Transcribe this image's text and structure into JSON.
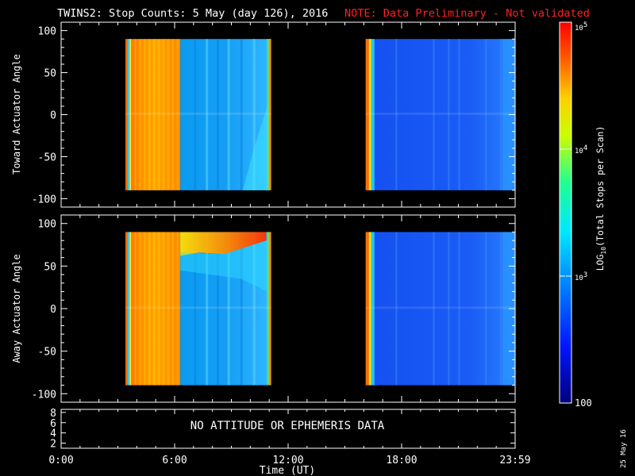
{
  "header": {
    "title": "TWINS2: Stop Counts:  5 May (day 126), 2016",
    "note": "NOTE: Data Preliminary - Not validated",
    "note_color": "#ff2020"
  },
  "side_stamp": "25 May 16",
  "chart_data": [
    {
      "type": "heatmap",
      "ylabel": "Toward Actuator Angle",
      "ylim": [
        -110,
        110
      ],
      "yticks": [
        -100,
        -50,
        0,
        50,
        100
      ],
      "xlim": [
        0,
        24
      ],
      "grid": false,
      "segments": [
        {
          "x_start": 3.4,
          "x_end": 11.1,
          "coverage_y": [
            -90,
            90
          ]
        },
        {
          "x_start": 16.1,
          "x_end": 24.0,
          "coverage_y": [
            -90,
            90
          ]
        }
      ],
      "approx_log10_counts": [
        {
          "x_start": 3.4,
          "x_end": 6.3,
          "value": 4.6
        },
        {
          "x_start": 6.3,
          "x_end": 11.1,
          "value": 3.2
        },
        {
          "x_start": 16.1,
          "x_end": 24.0,
          "value": 2.5
        }
      ]
    },
    {
      "type": "heatmap",
      "ylabel": "Away Actuator Angle",
      "ylim": [
        -110,
        110
      ],
      "yticks": [
        -100,
        -50,
        0,
        50,
        100
      ],
      "xlim": [
        0,
        24
      ],
      "grid": false,
      "segments": [
        {
          "x_start": 3.4,
          "x_end": 11.1,
          "coverage_y": [
            -90,
            90
          ]
        },
        {
          "x_start": 16.1,
          "x_end": 24.0,
          "coverage_y": [
            -90,
            90
          ]
        }
      ],
      "approx_log10_counts": [
        {
          "x_start": 3.4,
          "x_end": 6.3,
          "value": 4.6
        },
        {
          "x_start": 6.3,
          "x_end": 11.1,
          "value": 3.2
        },
        {
          "x_start": 16.1,
          "x_end": 24.0,
          "value": 2.5
        }
      ]
    },
    {
      "type": "line",
      "yticks": [
        2,
        4,
        6,
        8
      ],
      "xlim": [
        0,
        24
      ],
      "xticks": [
        "0:00",
        "6:00",
        "12:00",
        "18:00",
        "23:59"
      ],
      "xlabel": "Time (UT)",
      "message": "NO ATTITUDE OR EPHEMERIS DATA"
    }
  ],
  "colorbar": {
    "label": "LOG10(Total Stops per Scan)",
    "scale": "log",
    "range": [
      100,
      100000
    ],
    "tick_labels": [
      "10^5",
      "10^4",
      "10^3",
      "100"
    ],
    "tick_values": [
      100000,
      10000,
      1000,
      100
    ]
  }
}
